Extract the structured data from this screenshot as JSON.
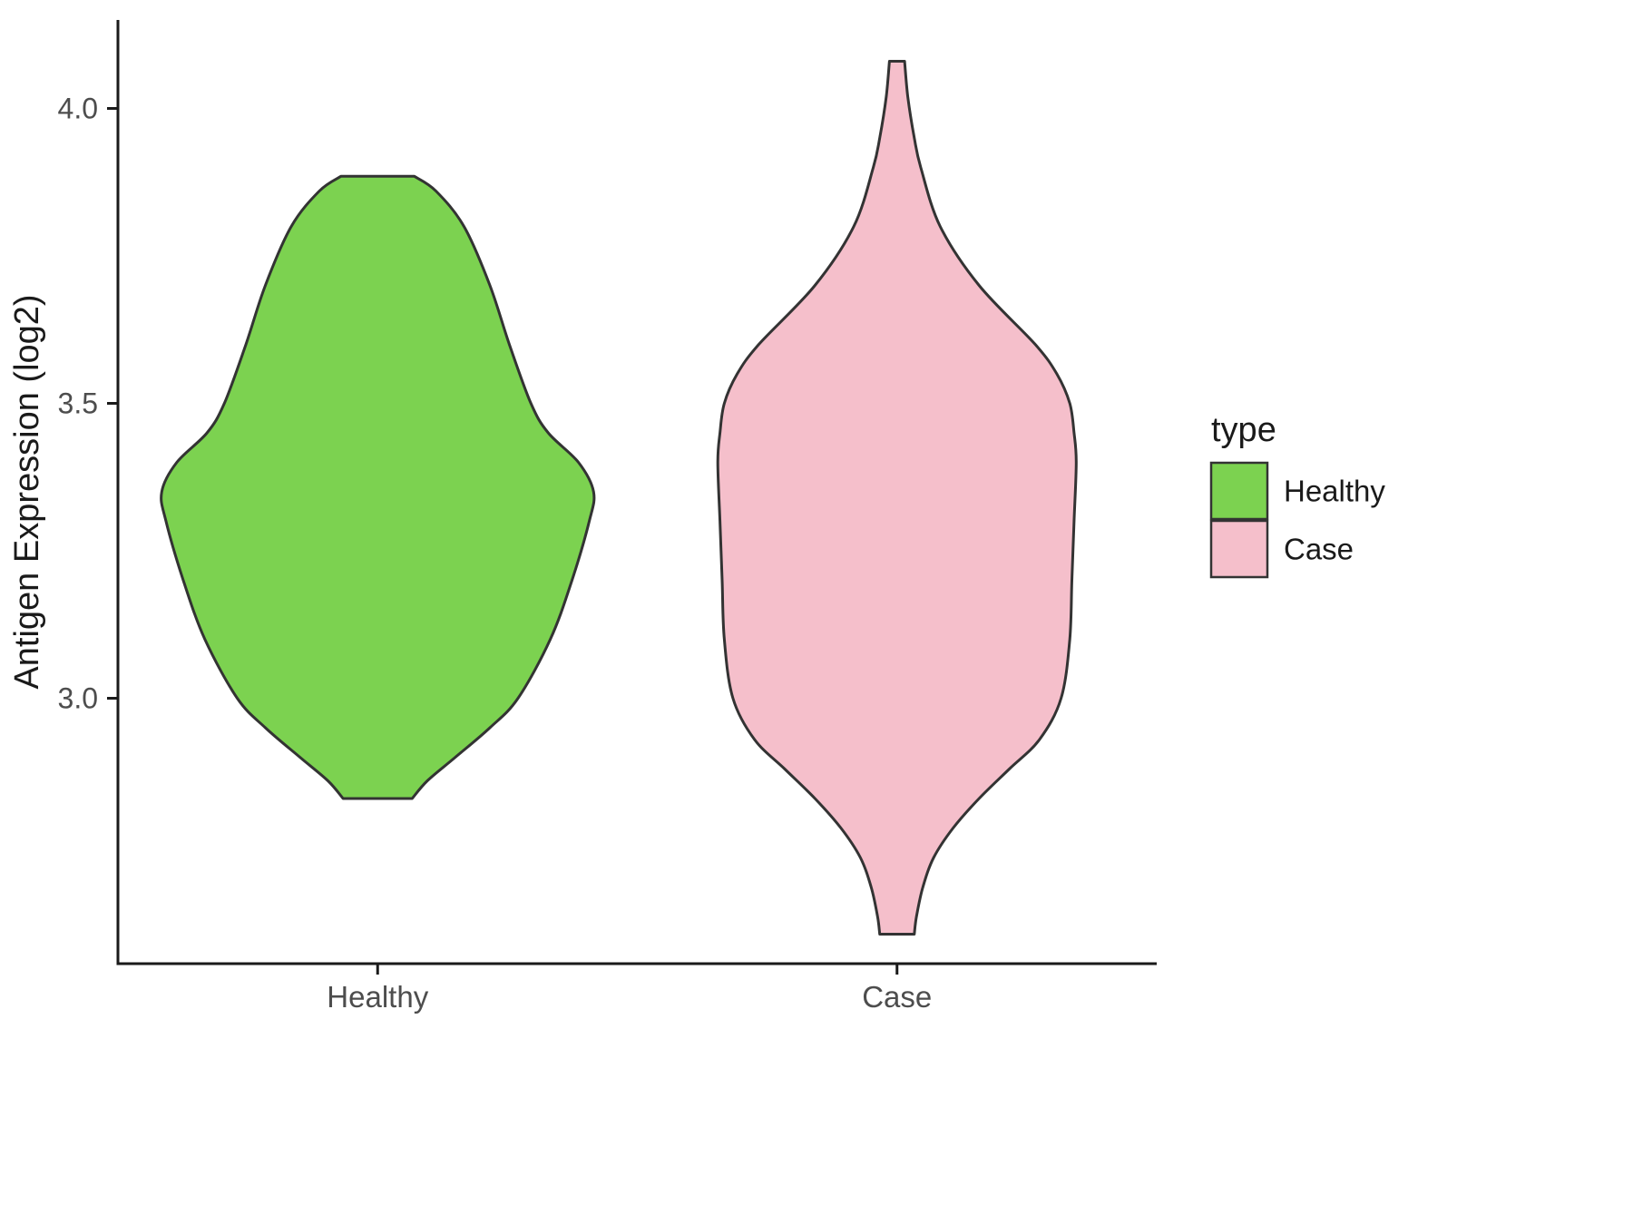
{
  "chart_data": {
    "type": "violin",
    "title": "",
    "xlabel": "",
    "ylabel": "Antigen Expression (log2)",
    "categories": [
      "Healthy",
      "Case"
    ],
    "y_ticks": [
      {
        "v": 3.0,
        "label": "3.0"
      },
      {
        "v": 3.5,
        "label": "3.5"
      },
      {
        "v": 4.0,
        "label": "4.0"
      }
    ],
    "ylim": [
      2.55,
      4.15
    ],
    "grid": false,
    "legend": {
      "title": "type",
      "position": "right",
      "entries": [
        {
          "label": "Healthy",
          "color": "#7CD250"
        },
        {
          "label": "Case",
          "color": "#F5BFCB"
        }
      ]
    },
    "series": [
      {
        "name": "Healthy",
        "color": "#7CD250",
        "outline": "#333333",
        "profile": [
          [
            3.885,
            0.17
          ],
          [
            3.86,
            0.27
          ],
          [
            3.8,
            0.4
          ],
          [
            3.7,
            0.52
          ],
          [
            3.6,
            0.61
          ],
          [
            3.5,
            0.71
          ],
          [
            3.45,
            0.79
          ],
          [
            3.4,
            0.93
          ],
          [
            3.35,
            1.0
          ],
          [
            3.3,
            0.98
          ],
          [
            3.2,
            0.9
          ],
          [
            3.1,
            0.8
          ],
          [
            3.0,
            0.65
          ],
          [
            2.95,
            0.52
          ],
          [
            2.9,
            0.36
          ],
          [
            2.86,
            0.23
          ],
          [
            2.83,
            0.16
          ]
        ]
      },
      {
        "name": "Case",
        "color": "#F5BFCB",
        "outline": "#333333",
        "profile": [
          [
            4.08,
            0.035
          ],
          [
            4.02,
            0.05
          ],
          [
            3.95,
            0.08
          ],
          [
            3.9,
            0.11
          ],
          [
            3.8,
            0.2
          ],
          [
            3.7,
            0.38
          ],
          [
            3.6,
            0.64
          ],
          [
            3.55,
            0.74
          ],
          [
            3.5,
            0.8
          ],
          [
            3.45,
            0.82
          ],
          [
            3.4,
            0.83
          ],
          [
            3.3,
            0.82
          ],
          [
            3.2,
            0.81
          ],
          [
            3.1,
            0.8
          ],
          [
            3.0,
            0.76
          ],
          [
            2.93,
            0.66
          ],
          [
            2.88,
            0.52
          ],
          [
            2.83,
            0.38
          ],
          [
            2.78,
            0.26
          ],
          [
            2.73,
            0.17
          ],
          [
            2.68,
            0.12
          ],
          [
            2.63,
            0.09
          ],
          [
            2.6,
            0.08
          ]
        ]
      }
    ]
  },
  "colors": {
    "background": "#FFFFFF",
    "axis": "#1A1A1A",
    "tick_label": "#4D4D4D",
    "text": "#1A1A1A",
    "violin_stroke": "#333333"
  }
}
